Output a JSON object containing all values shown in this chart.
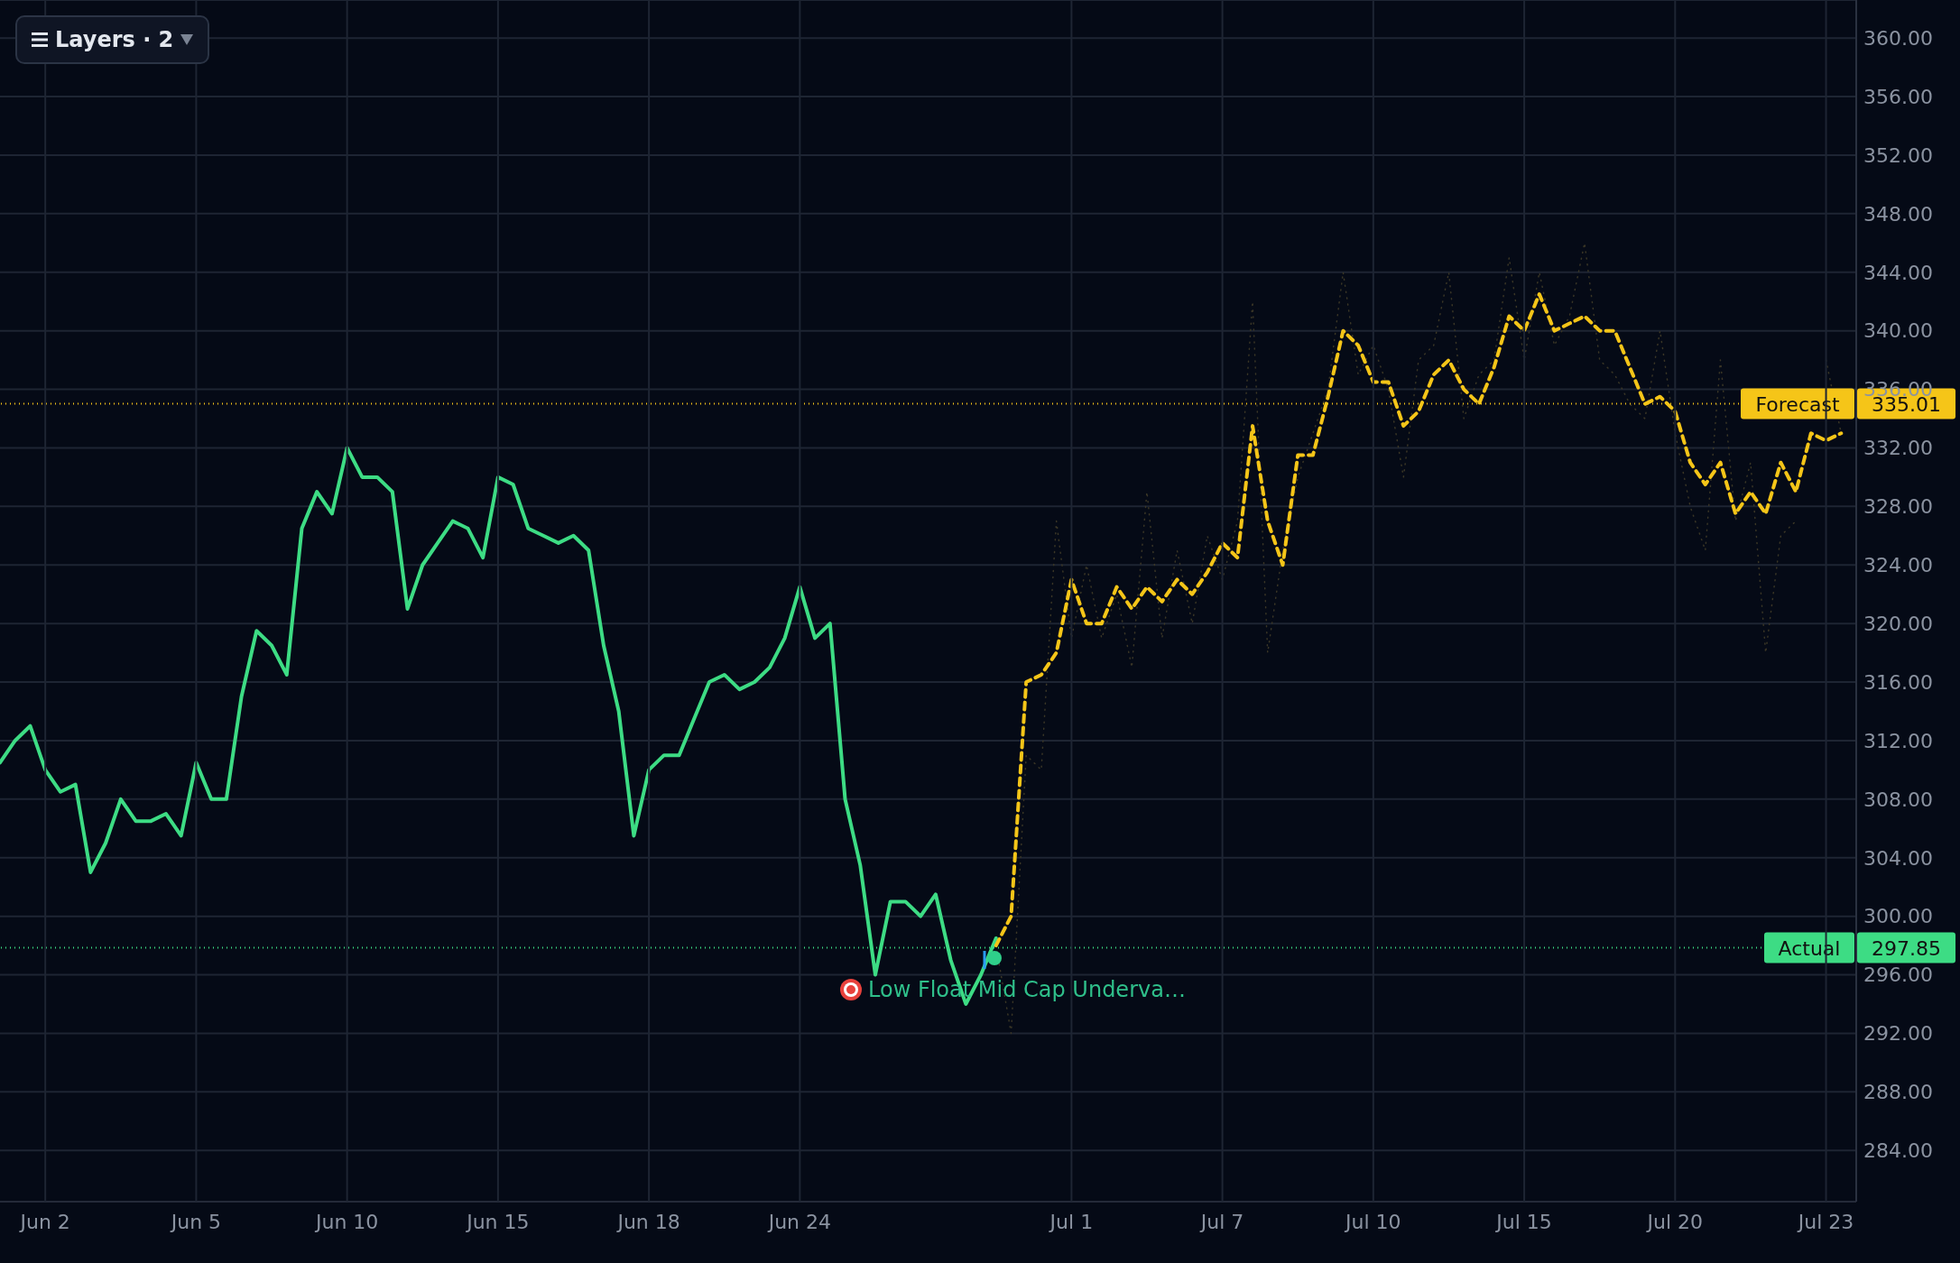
{
  "chart_data": {
    "type": "line",
    "categories": [
      null,
      null,
      null,
      "Jun 2",
      null,
      null,
      null,
      null,
      null,
      null,
      null,
      null,
      null,
      "Jun 5",
      null,
      null,
      null,
      null,
      null,
      null,
      null,
      null,
      null,
      "Jun 10",
      null,
      null,
      null,
      null,
      null,
      null,
      null,
      null,
      null,
      "Jun 15",
      null,
      null,
      null,
      null,
      null,
      null,
      null,
      null,
      null,
      "Jun 18",
      null,
      null,
      null,
      null,
      null,
      null,
      null,
      null,
      null,
      "Jun 24",
      null,
      null,
      null,
      null,
      null,
      null,
      null,
      null,
      null,
      null,
      null,
      null,
      null,
      null,
      null,
      null,
      null,
      "Jul 1",
      null,
      null,
      null,
      null,
      null,
      null,
      null,
      null,
      null,
      "Jul 7",
      null,
      null,
      null,
      null,
      null,
      null,
      null,
      null,
      null,
      "Jul 10",
      null,
      null,
      null,
      null,
      null,
      null,
      null,
      null,
      null,
      "Jul 15",
      null,
      null,
      null,
      null,
      null,
      null,
      null,
      null,
      null,
      "Jul 20",
      null,
      null,
      null,
      null,
      null,
      null,
      null,
      null,
      null,
      "Jul 23",
      null,
      null
    ],
    "series": [
      {
        "color": "#3ddc84",
        "line_style": "solid",
        "values": [
          310.5,
          312,
          313,
          310,
          308.5,
          309,
          303,
          305,
          308,
          306.5,
          306.5,
          307,
          305.5,
          310.5,
          308,
          308,
          315,
          319.5,
          318.5,
          316.5,
          326.5,
          329,
          327.5,
          332,
          330,
          330,
          329,
          321,
          324,
          325.5,
          327,
          326.5,
          324.5,
          330,
          329.5,
          326.5,
          326,
          325.5,
          326,
          325,
          318.5,
          314,
          305.5,
          310,
          311,
          311,
          313.5,
          316,
          316.5,
          315.5,
          316,
          317,
          319,
          322.5,
          319,
          320,
          308,
          303.5,
          296,
          301,
          301,
          300,
          301.5,
          297,
          294,
          296,
          298.5,
          null,
          null,
          null,
          null,
          null,
          null,
          null,
          null,
          null,
          null,
          null,
          null,
          null,
          null,
          null,
          null,
          null,
          null,
          null,
          null,
          null,
          null,
          null,
          null,
          null,
          null,
          null,
          null,
          null,
          null,
          null,
          null,
          null,
          null,
          null,
          null,
          null,
          null,
          null,
          null,
          null,
          null,
          null,
          null,
          null,
          null,
          null,
          null,
          null,
          null,
          null,
          null,
          null,
          null,
          null,
          null,
          null
        ]
      },
      {
        "color": "#3a3626",
        "line_style": "dotted",
        "values": [
          null,
          null,
          null,
          null,
          null,
          null,
          null,
          null,
          null,
          null,
          null,
          null,
          null,
          null,
          null,
          null,
          null,
          null,
          null,
          null,
          null,
          null,
          null,
          null,
          null,
          null,
          null,
          null,
          null,
          null,
          null,
          null,
          null,
          null,
          null,
          null,
          null,
          null,
          null,
          null,
          null,
          null,
          null,
          null,
          null,
          null,
          null,
          null,
          null,
          null,
          null,
          null,
          null,
          null,
          null,
          null,
          null,
          null,
          null,
          null,
          null,
          null,
          null,
          null,
          null,
          null,
          298,
          292,
          311,
          310,
          327,
          319,
          324,
          319,
          322,
          317,
          329,
          319,
          325,
          320,
          326,
          323,
          327,
          342,
          318,
          325,
          330,
          333,
          336,
          344,
          337,
          339,
          336,
          330,
          338,
          339,
          344,
          334,
          337,
          338,
          345,
          338,
          344,
          339,
          341,
          346,
          338,
          337,
          335,
          334,
          340,
          333,
          328,
          325,
          338,
          327,
          331,
          318,
          326,
          327,
          null,
          338,
          333,
          null
        ]
      },
      {
        "color": "#f5c518",
        "line_style": "dashed",
        "values": [
          null,
          null,
          null,
          null,
          null,
          null,
          null,
          null,
          null,
          null,
          null,
          null,
          null,
          null,
          null,
          null,
          null,
          null,
          null,
          null,
          null,
          null,
          null,
          null,
          null,
          null,
          null,
          null,
          null,
          null,
          null,
          null,
          null,
          null,
          null,
          null,
          null,
          null,
          null,
          null,
          null,
          null,
          null,
          null,
          null,
          null,
          null,
          null,
          null,
          null,
          null,
          null,
          null,
          null,
          null,
          null,
          null,
          null,
          null,
          null,
          null,
          null,
          null,
          null,
          null,
          null,
          298,
          300,
          316,
          316.5,
          318,
          323,
          320,
          320,
          322.5,
          321,
          322.5,
          321.5,
          323,
          322,
          323.5,
          325.5,
          324.5,
          333.5,
          327,
          324,
          331.5,
          331.5,
          335.5,
          340,
          339,
          336.5,
          336.5,
          333.5,
          334.5,
          337,
          338,
          336,
          335,
          337.5,
          341,
          340,
          342.5,
          340,
          340.5,
          341,
          340,
          340,
          337.5,
          335,
          335.5,
          334.5,
          331,
          329.5,
          331,
          327.5,
          329,
          327.5,
          331,
          329,
          333,
          332.5,
          333,
          null
        ]
      }
    ],
    "ylim": [
      280.5,
      362.6
    ],
    "yticks": [
      {
        "value": 284,
        "label": "284.00"
      },
      {
        "value": 288,
        "label": "288.00"
      },
      {
        "value": 292,
        "label": "292.00"
      },
      {
        "value": 296,
        "label": "296.00"
      },
      {
        "value": 300,
        "label": "300.00"
      },
      {
        "value": 304,
        "label": "304.00"
      },
      {
        "value": 308,
        "label": "308.00"
      },
      {
        "value": 312,
        "label": "312.00"
      },
      {
        "value": 316,
        "label": "316.00"
      },
      {
        "value": 320,
        "label": "320.00"
      },
      {
        "value": 324,
        "label": "324.00"
      },
      {
        "value": 328,
        "label": "328.00"
      },
      {
        "value": 332,
        "label": "332.00"
      },
      {
        "value": 336,
        "label": "336.00"
      },
      {
        "value": 340,
        "label": "340.00"
      },
      {
        "value": 344,
        "label": "344.00"
      },
      {
        "value": 348,
        "label": "348.00"
      },
      {
        "value": 352,
        "label": "352.00"
      },
      {
        "value": 356,
        "label": "356.00"
      },
      {
        "value": 360,
        "label": "360.00"
      }
    ],
    "ref_lines": [
      {
        "axis": "y",
        "value": 335.01,
        "label": "Forecast",
        "color": "#f5c518",
        "line_style": "dotted"
      },
      {
        "axis": "y",
        "value": 297.85,
        "label": "Actual",
        "color": "#3ddc84",
        "line_style": "dotted"
      }
    ],
    "annotations": [
      "Layers · 2",
      "Low Float Mid Cap Underva…",
      "335.01",
      "297.85"
    ],
    "grid": true,
    "marker": "none"
  }
}
